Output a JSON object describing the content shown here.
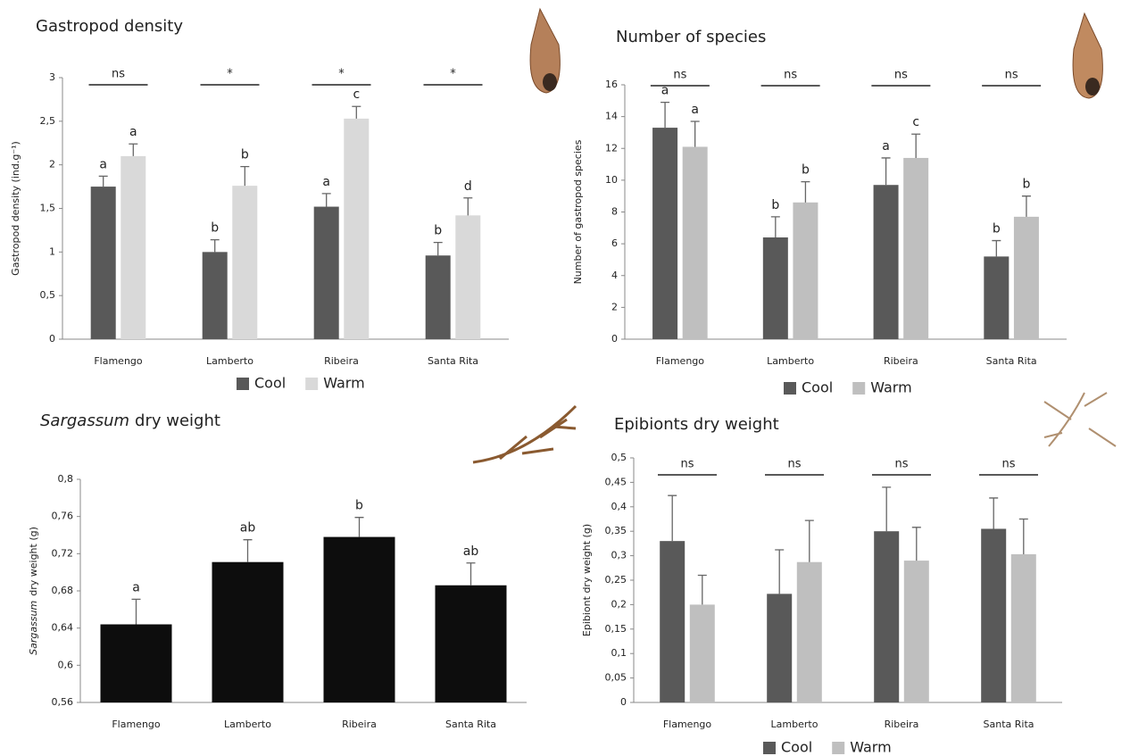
{
  "chart_data": [
    {
      "type": "bar",
      "title": "Gastropod density",
      "ylabel": "Gastropod density (ind.g⁻¹)",
      "categories": [
        "Flamengo",
        "Lamberto",
        "Ribeira",
        "Santa Rita"
      ],
      "series": [
        {
          "name": "Cool",
          "color": "#595959",
          "values": [
            1.75,
            1.0,
            1.52,
            0.96
          ],
          "errors": [
            0.12,
            0.14,
            0.15,
            0.15
          ],
          "letters": [
            "a",
            "b",
            "a",
            "b"
          ]
        },
        {
          "name": "Warm",
          "color": "#d9d9d9",
          "values": [
            2.1,
            1.76,
            2.53,
            1.42
          ],
          "errors": [
            0.14,
            0.22,
            0.14,
            0.2
          ],
          "letters": [
            "a",
            "b",
            "c",
            "d"
          ]
        }
      ],
      "significance": [
        "ns",
        "*",
        "*",
        "*"
      ],
      "ylim": [
        0,
        3
      ],
      "yticks": [
        0,
        {
          "value": 0.5,
          "label": "0,5"
        },
        1,
        {
          "value": 1.5,
          "label": "1,5"
        },
        2,
        {
          "value": 2.5,
          "label": "2,5"
        },
        3
      ]
    },
    {
      "type": "bar",
      "title": "Number of species",
      "ylabel": "Number of gastropod species",
      "categories": [
        "Flamengo",
        "Lamberto",
        "Ribeira",
        "Santa Rita"
      ],
      "series": [
        {
          "name": "Cool",
          "color": "#595959",
          "values": [
            13.3,
            6.4,
            9.7,
            5.2
          ],
          "errors": [
            1.6,
            1.3,
            1.7,
            1.0
          ],
          "letters": [
            "a",
            "b",
            "a",
            "b"
          ]
        },
        {
          "name": "Warm",
          "color": "#bfbfbf",
          "values": [
            12.1,
            8.6,
            11.4,
            7.7
          ],
          "errors": [
            1.6,
            1.3,
            1.5,
            1.3
          ],
          "letters": [
            "a",
            "b",
            "c",
            "b"
          ]
        }
      ],
      "significance": [
        "ns",
        "ns",
        "ns",
        "ns"
      ],
      "ylim": [
        0,
        16
      ],
      "yticks": [
        0,
        2,
        4,
        6,
        8,
        10,
        12,
        14,
        16
      ]
    },
    {
      "type": "bar",
      "title_italic": "Sargassum",
      "title": "dry weight",
      "ylabel_italic": "Sargassum",
      "ylabel": "dry weight (g)",
      "categories": [
        "Flamengo",
        "Lamberto",
        "Ribeira",
        "Santa Rita"
      ],
      "series": [
        {
          "color": "#0d0d0d",
          "values": [
            0.644,
            0.711,
            0.738,
            0.686
          ],
          "errors": [
            0.027,
            0.024,
            0.021,
            0.024
          ],
          "letters": [
            "a",
            "ab",
            "b",
            "ab"
          ]
        }
      ],
      "ylim": [
        0.56,
        0.8
      ],
      "yticks": [
        {
          "value": 0.56,
          "label": "0,56"
        },
        {
          "value": 0.6,
          "label": "0,6"
        },
        {
          "value": 0.64,
          "label": "0,64"
        },
        {
          "value": 0.68,
          "label": "0,68"
        },
        {
          "value": 0.72,
          "label": "0,72"
        },
        {
          "value": 0.76,
          "label": "0,76"
        },
        {
          "value": 0.8,
          "label": "0,8"
        }
      ]
    },
    {
      "type": "bar",
      "title": "Epibionts dry weight",
      "ylabel": "Epibiont dry weight (g)",
      "categories": [
        "Flamengo",
        "Lamberto",
        "Ribeira",
        "Santa Rita"
      ],
      "series": [
        {
          "name": "Cool",
          "color": "#595959",
          "values": [
            0.33,
            0.222,
            0.35,
            0.355
          ],
          "errors": [
            0.093,
            0.09,
            0.09,
            0.063
          ]
        },
        {
          "name": "Warm",
          "color": "#bfbfbf",
          "values": [
            0.2,
            0.287,
            0.29,
            0.303
          ],
          "errors": [
            0.06,
            0.085,
            0.068,
            0.072
          ]
        }
      ],
      "significance": [
        "ns",
        "ns",
        "ns",
        "ns"
      ],
      "ylim": [
        0,
        0.5
      ],
      "yticks": [
        0,
        {
          "value": 0.05,
          "label": "0,05"
        },
        {
          "value": 0.1,
          "label": "0,1"
        },
        {
          "value": 0.15,
          "label": "0,15"
        },
        {
          "value": 0.2,
          "label": "0,2"
        },
        {
          "value": 0.25,
          "label": "0,25"
        },
        {
          "value": 0.3,
          "label": "0,3"
        },
        {
          "value": 0.35,
          "label": "0,35"
        },
        {
          "value": 0.4,
          "label": "0,4"
        },
        {
          "value": 0.45,
          "label": "0,45"
        },
        {
          "value": 0.5,
          "label": "0,5"
        }
      ]
    }
  ]
}
